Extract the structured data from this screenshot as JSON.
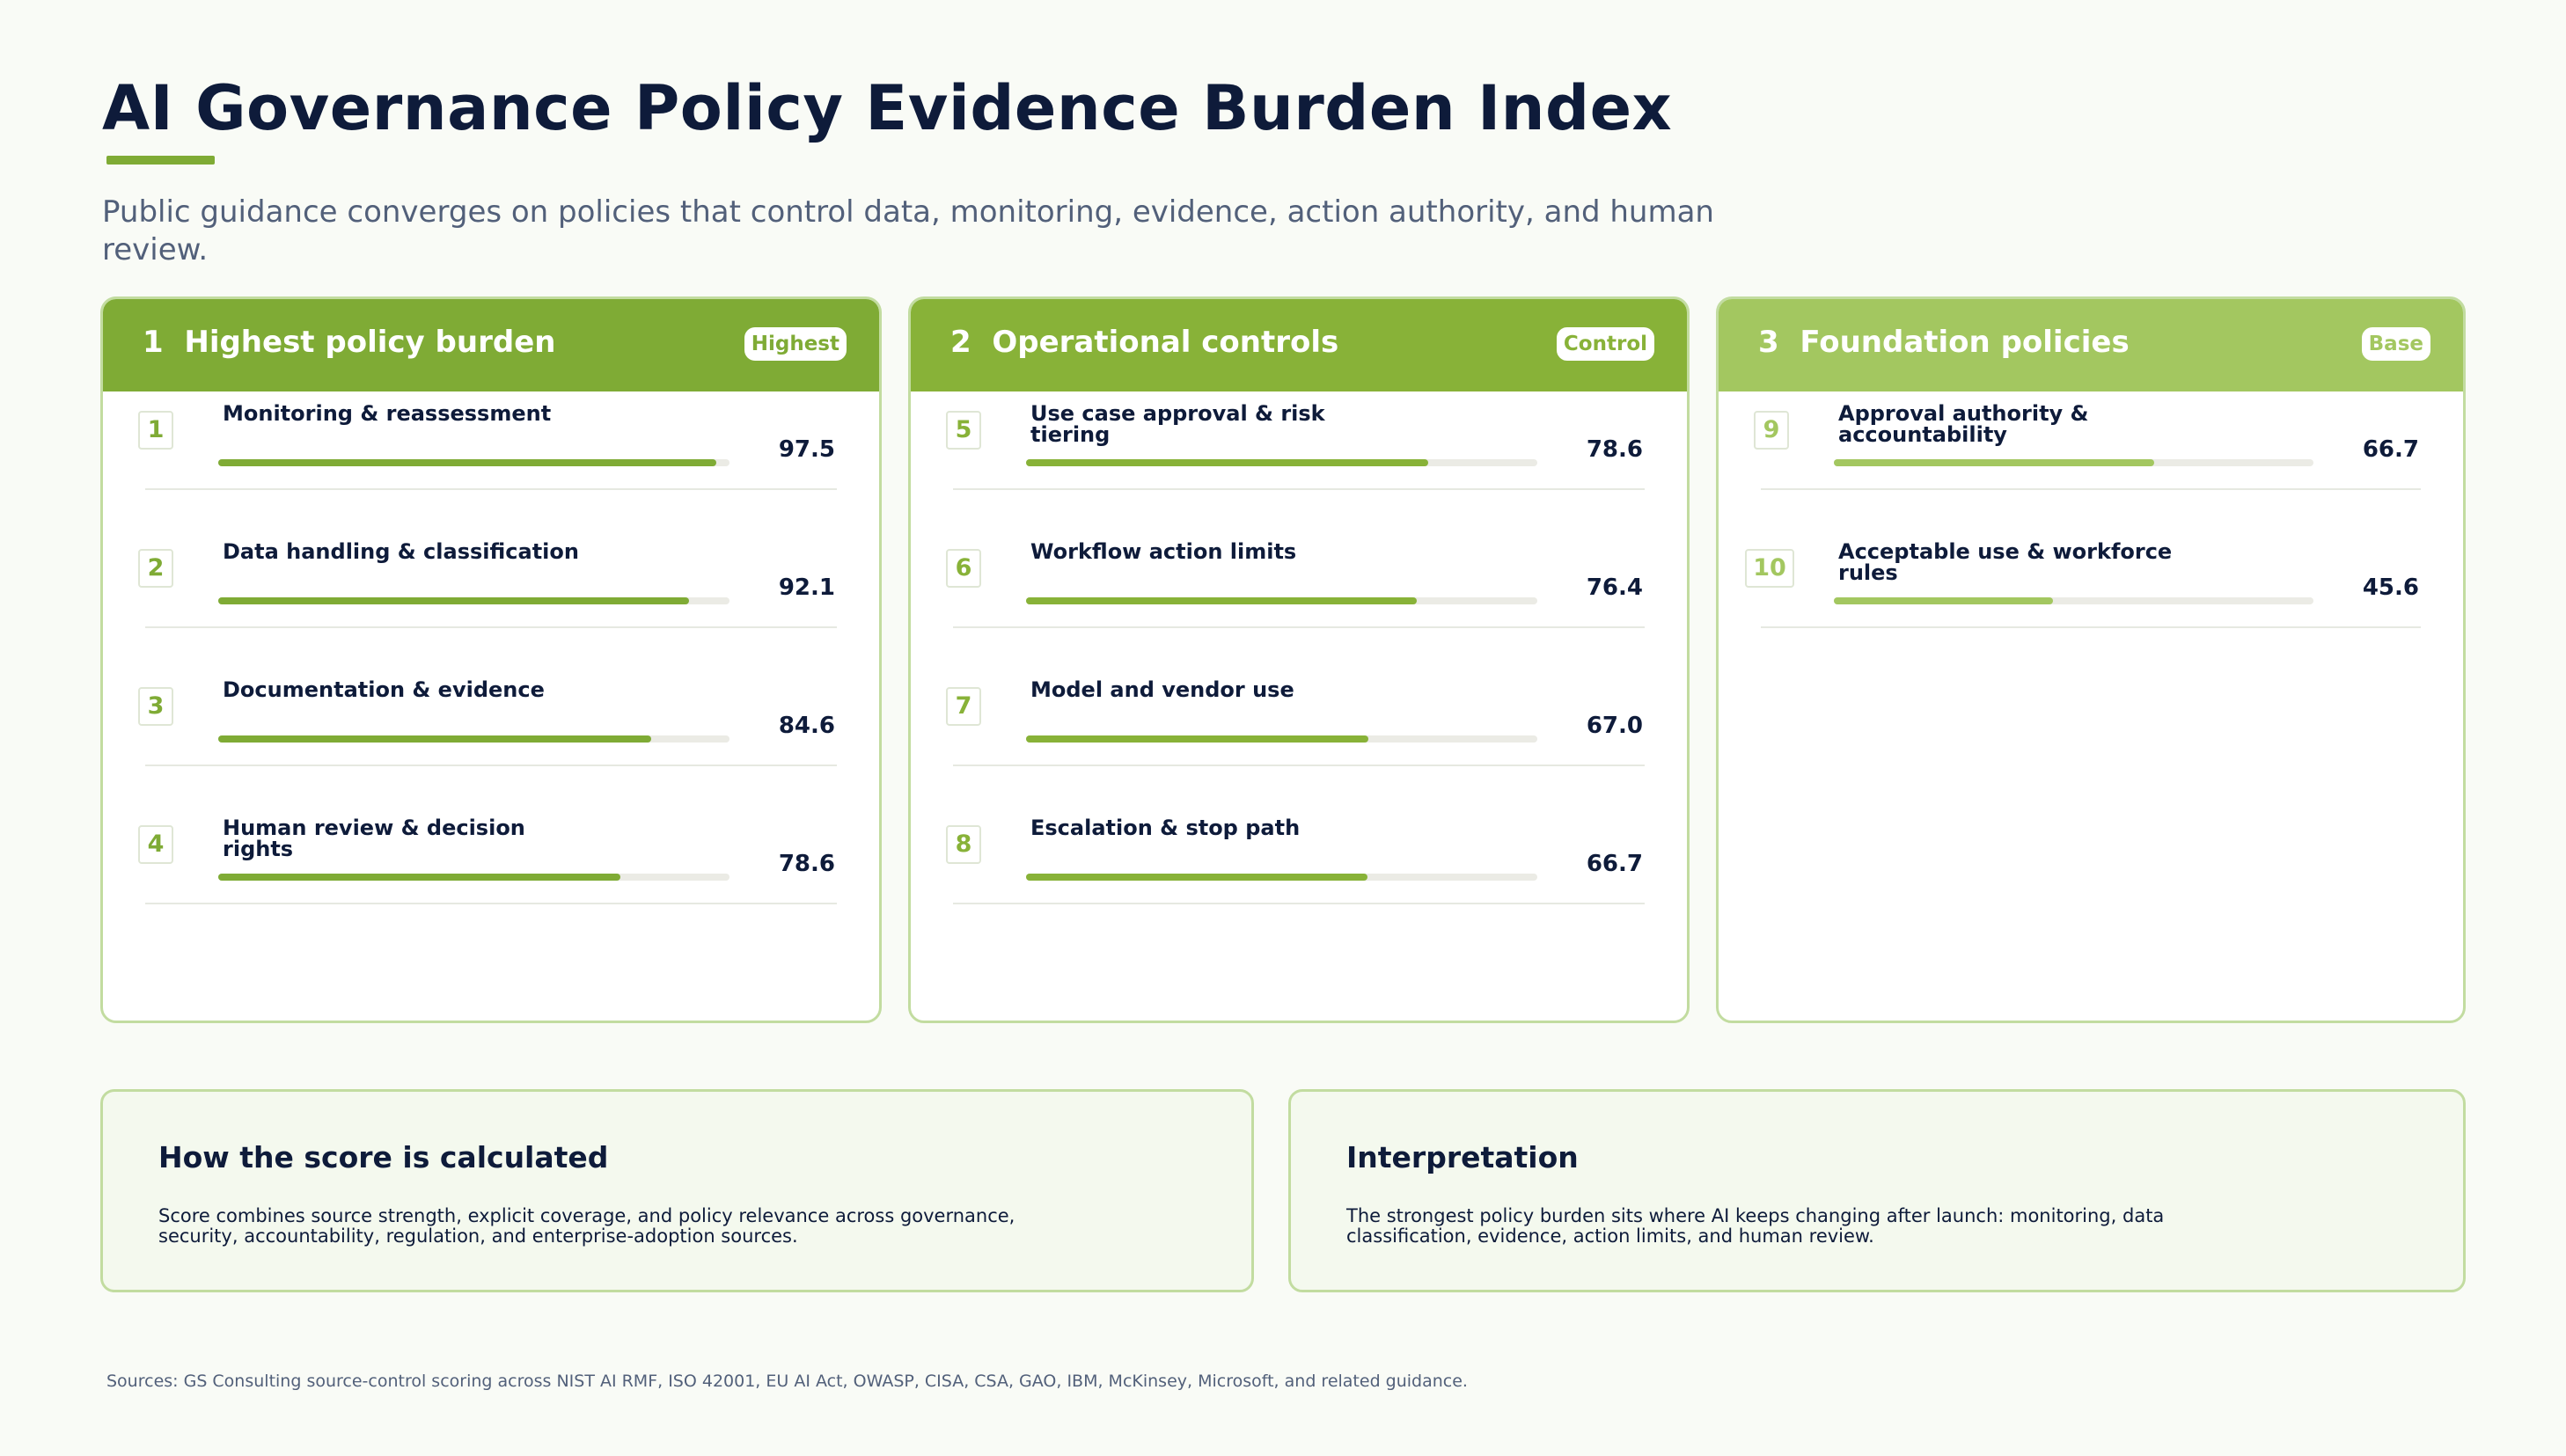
{
  "title": "AI Governance Policy Evidence Burden Index",
  "subtitle": "Public guidance converges on policies that control data, monitoring, evidence, action authority, and human review.",
  "colors": {
    "accent": "#7fab35",
    "tier1": "#7fab35",
    "tier2": "#88b238",
    "tier3": "#a3c760",
    "title_text": "#0e1b3a",
    "muted_text": "#52607a"
  },
  "chart_data": {
    "type": "bar",
    "orientation": "horizontal",
    "xlim": [
      0,
      100
    ],
    "groups": [
      {
        "number": "1",
        "name": "Highest policy burden",
        "badge": "Highest",
        "items": [
          {
            "rank": "1",
            "label": "Monitoring & reassessment",
            "value": 97.5,
            "display": "97.5"
          },
          {
            "rank": "2",
            "label": "Data handling & classification",
            "value": 92.1,
            "display": "92.1"
          },
          {
            "rank": "3",
            "label": "Documentation & evidence",
            "value": 84.6,
            "display": "84.6"
          },
          {
            "rank": "4",
            "label": "Human review & decision rights",
            "value": 78.6,
            "display": "78.6"
          }
        ]
      },
      {
        "number": "2",
        "name": "Operational controls",
        "badge": "Control",
        "items": [
          {
            "rank": "5",
            "label": "Use case approval & risk tiering",
            "value": 78.6,
            "display": "78.6"
          },
          {
            "rank": "6",
            "label": "Workflow action limits",
            "value": 76.4,
            "display": "76.4"
          },
          {
            "rank": "7",
            "label": "Model and vendor use",
            "value": 67.0,
            "display": "67.0"
          },
          {
            "rank": "8",
            "label": "Escalation & stop path",
            "value": 66.7,
            "display": "66.7"
          }
        ]
      },
      {
        "number": "3",
        "name": "Foundation policies",
        "badge": "Base",
        "items": [
          {
            "rank": "9",
            "label": "Approval authority & accountability",
            "value": 66.7,
            "display": "66.7"
          },
          {
            "rank": "10",
            "label": "Acceptable use & workforce rules",
            "value": 45.6,
            "display": "45.6"
          }
        ]
      }
    ]
  },
  "notes": {
    "calculation": {
      "title": "How the score is calculated",
      "text": "Score combines source strength, explicit coverage, and policy relevance across governance, security, accountability, regulation, and enterprise-adoption sources."
    },
    "interpretation": {
      "title": "Interpretation",
      "text": "The strongest policy burden sits where AI keeps changing after launch: monitoring, data classification, evidence, action limits, and human review."
    }
  },
  "sources": "Sources: GS Consulting source-control scoring across NIST AI RMF, ISO 42001, EU AI Act, OWASP, CISA, CSA, GAO, IBM, McKinsey, Microsoft, and related guidance."
}
